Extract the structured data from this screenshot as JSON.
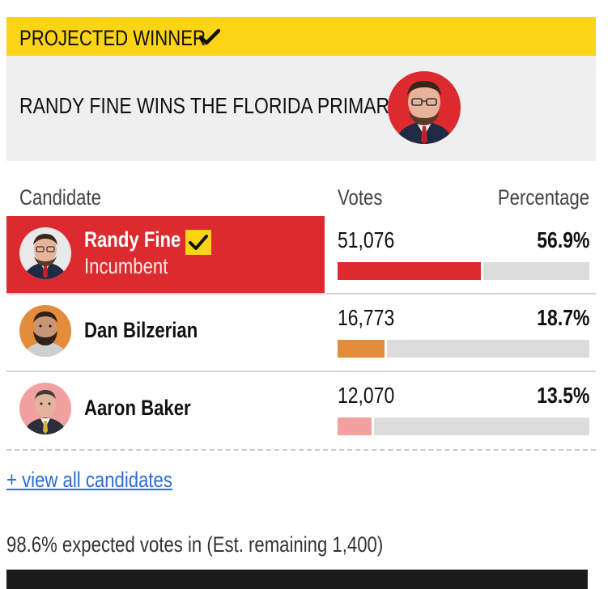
{
  "banner": {
    "label": "PROJECTED WINNER",
    "check_icon": "checkmark-icon",
    "color": "#fcd416"
  },
  "headline": {
    "text": "RANDY FINE WINS THE FLORIDA PRIMARY",
    "photo_icon": "candidate-portrait"
  },
  "table": {
    "headers": {
      "candidate": "Candidate",
      "votes": "Votes",
      "percentage": "Percentage"
    },
    "rows": [
      {
        "name": "Randy Fine",
        "subtitle": "Incumbent",
        "votes": "51,076",
        "percentage": "56.9%",
        "share": 0.569,
        "color": "#dc2a2e",
        "winner": true
      },
      {
        "name": "Dan Bilzerian",
        "votes": "16,773",
        "percentage": "18.7%",
        "share": 0.187,
        "color": "#e38c3b",
        "winner": false
      },
      {
        "name": "Aaron Baker",
        "votes": "12,070",
        "percentage": "13.5%",
        "share": 0.135,
        "color": "#f3a0a0",
        "winner": false
      }
    ]
  },
  "view_all": "+ view all candidates",
  "expected": "98.6% expected votes in (Est. remaining 1,400)",
  "expected_share": 0.986,
  "colors": {
    "winner_highlight": "#dc2a2e",
    "accent_yellow": "#fcd416",
    "link": "#2a6bd6"
  }
}
